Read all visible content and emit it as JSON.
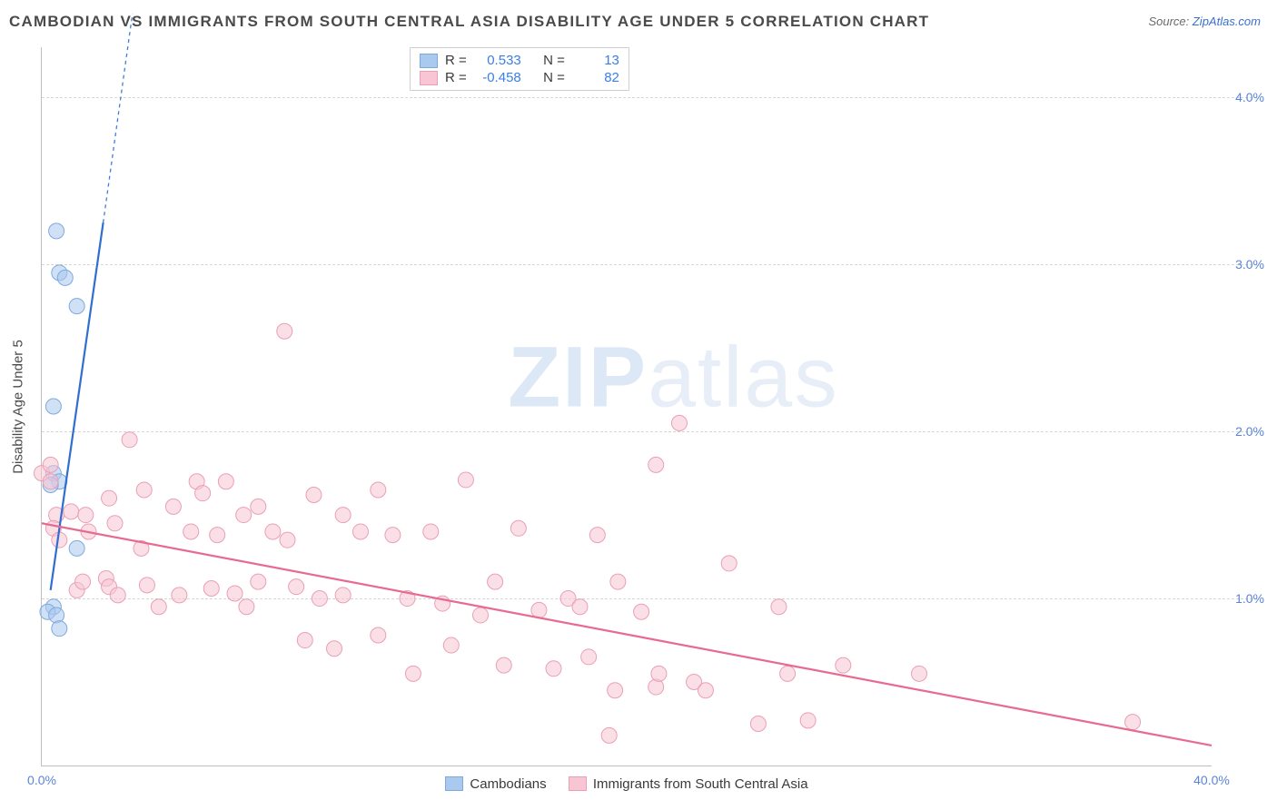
{
  "title": "CAMBODIAN VS IMMIGRANTS FROM SOUTH CENTRAL ASIA DISABILITY AGE UNDER 5 CORRELATION CHART",
  "source_prefix": "Source: ",
  "source_name": "ZipAtlas.com",
  "watermark_a": "ZIP",
  "watermark_b": "atlas",
  "chart": {
    "type": "scatter",
    "background_color": "#ffffff",
    "grid_color": "#d6d6d6",
    "axis_color": "#bfbfbf",
    "tick_label_color": "#5a84d8",
    "y_axis_label": "Disability Age Under 5",
    "y_axis_label_fontsize": 15,
    "title_fontsize": 17,
    "title_color": "#4a4a4a",
    "xlim": [
      0,
      40
    ],
    "ylim": [
      0,
      4.3
    ],
    "x_ticks": [
      {
        "v": 0,
        "label": "0.0%"
      },
      {
        "v": 40,
        "label": "40.0%"
      }
    ],
    "y_ticks": [
      {
        "v": 1,
        "label": "1.0%"
      },
      {
        "v": 2,
        "label": "2.0%"
      },
      {
        "v": 3,
        "label": "3.0%"
      },
      {
        "v": 4,
        "label": "4.0%"
      }
    ],
    "marker_radius": 8.5,
    "marker_opacity": 0.55,
    "line_width": 2.2,
    "dash_extension_opacity": 0.9
  },
  "series": [
    {
      "id": "cambodians",
      "label": "Cambodians",
      "color_fill": "#a9c9ee",
      "color_stroke": "#7fa9de",
      "trend_color": "#2f6fd0",
      "R": "0.533",
      "N": "13",
      "trendline": {
        "x1": 0.3,
        "y1": 1.05,
        "x2": 2.1,
        "y2": 3.25
      },
      "trendline_dash": {
        "x1": 2.1,
        "y1": 3.25,
        "x2": 3.1,
        "y2": 4.5
      },
      "points": [
        [
          0.5,
          3.2
        ],
        [
          0.6,
          2.95
        ],
        [
          0.8,
          2.92
        ],
        [
          1.2,
          2.75
        ],
        [
          0.4,
          2.15
        ],
        [
          0.4,
          1.75
        ],
        [
          0.6,
          1.7
        ],
        [
          0.3,
          1.68
        ],
        [
          1.2,
          1.3
        ],
        [
          0.4,
          0.95
        ],
        [
          0.2,
          0.92
        ],
        [
          0.5,
          0.9
        ],
        [
          0.6,
          0.82
        ]
      ]
    },
    {
      "id": "immigrants-sca",
      "label": "Immigrants from South Central Asia",
      "color_fill": "#f7c5d3",
      "color_stroke": "#ea9fb6",
      "trend_color": "#e86a91",
      "R": "-0.458",
      "N": "82",
      "trendline": {
        "x1": 0.0,
        "y1": 1.45,
        "x2": 40.0,
        "y2": 0.12
      },
      "trendline_dash": null,
      "points": [
        [
          0.0,
          1.75
        ],
        [
          0.3,
          1.7
        ],
        [
          0.3,
          1.8
        ],
        [
          0.5,
          1.5
        ],
        [
          0.4,
          1.42
        ],
        [
          0.6,
          1.35
        ],
        [
          1.0,
          1.52
        ],
        [
          1.2,
          1.05
        ],
        [
          1.4,
          1.1
        ],
        [
          1.5,
          1.5
        ],
        [
          1.6,
          1.4
        ],
        [
          2.3,
          1.6
        ],
        [
          2.2,
          1.12
        ],
        [
          2.3,
          1.07
        ],
        [
          2.5,
          1.45
        ],
        [
          2.6,
          1.02
        ],
        [
          3.0,
          1.95
        ],
        [
          3.4,
          1.3
        ],
        [
          3.5,
          1.65
        ],
        [
          3.6,
          1.08
        ],
        [
          4.0,
          0.95
        ],
        [
          4.5,
          1.55
        ],
        [
          4.7,
          1.02
        ],
        [
          5.1,
          1.4
        ],
        [
          5.3,
          1.7
        ],
        [
          5.5,
          1.63
        ],
        [
          5.8,
          1.06
        ],
        [
          6.0,
          1.38
        ],
        [
          6.3,
          1.7
        ],
        [
          6.6,
          1.03
        ],
        [
          6.9,
          1.5
        ],
        [
          7.0,
          0.95
        ],
        [
          7.4,
          1.55
        ],
        [
          7.4,
          1.1
        ],
        [
          7.9,
          1.4
        ],
        [
          8.3,
          2.6
        ],
        [
          8.4,
          1.35
        ],
        [
          8.7,
          1.07
        ],
        [
          9.0,
          0.75
        ],
        [
          9.3,
          1.62
        ],
        [
          9.5,
          1.0
        ],
        [
          10.0,
          0.7
        ],
        [
          10.3,
          1.5
        ],
        [
          10.3,
          1.02
        ],
        [
          10.9,
          1.4
        ],
        [
          11.5,
          1.65
        ],
        [
          11.5,
          0.78
        ],
        [
          12.0,
          1.38
        ],
        [
          12.5,
          1.0
        ],
        [
          12.7,
          0.55
        ],
        [
          13.3,
          1.4
        ],
        [
          13.7,
          0.97
        ],
        [
          14.0,
          0.72
        ],
        [
          14.5,
          1.71
        ],
        [
          15.0,
          0.9
        ],
        [
          15.5,
          1.1
        ],
        [
          15.8,
          0.6
        ],
        [
          16.3,
          1.42
        ],
        [
          17.0,
          0.93
        ],
        [
          17.5,
          0.58
        ],
        [
          18.0,
          1.0
        ],
        [
          18.4,
          0.95
        ],
        [
          18.7,
          0.65
        ],
        [
          19.0,
          1.38
        ],
        [
          19.4,
          0.18
        ],
        [
          19.6,
          0.45
        ],
        [
          19.7,
          1.1
        ],
        [
          20.5,
          0.92
        ],
        [
          21.0,
          1.8
        ],
        [
          21.0,
          0.47
        ],
        [
          21.1,
          0.55
        ],
        [
          21.8,
          2.05
        ],
        [
          22.3,
          0.5
        ],
        [
          22.7,
          0.45
        ],
        [
          23.5,
          1.21
        ],
        [
          24.5,
          0.25
        ],
        [
          25.2,
          0.95
        ],
        [
          25.5,
          0.55
        ],
        [
          26.2,
          0.27
        ],
        [
          27.4,
          0.6
        ],
        [
          30.0,
          0.55
        ],
        [
          37.3,
          0.26
        ]
      ]
    }
  ],
  "legend_top": {
    "R_label": "R =",
    "N_label": "N ="
  }
}
